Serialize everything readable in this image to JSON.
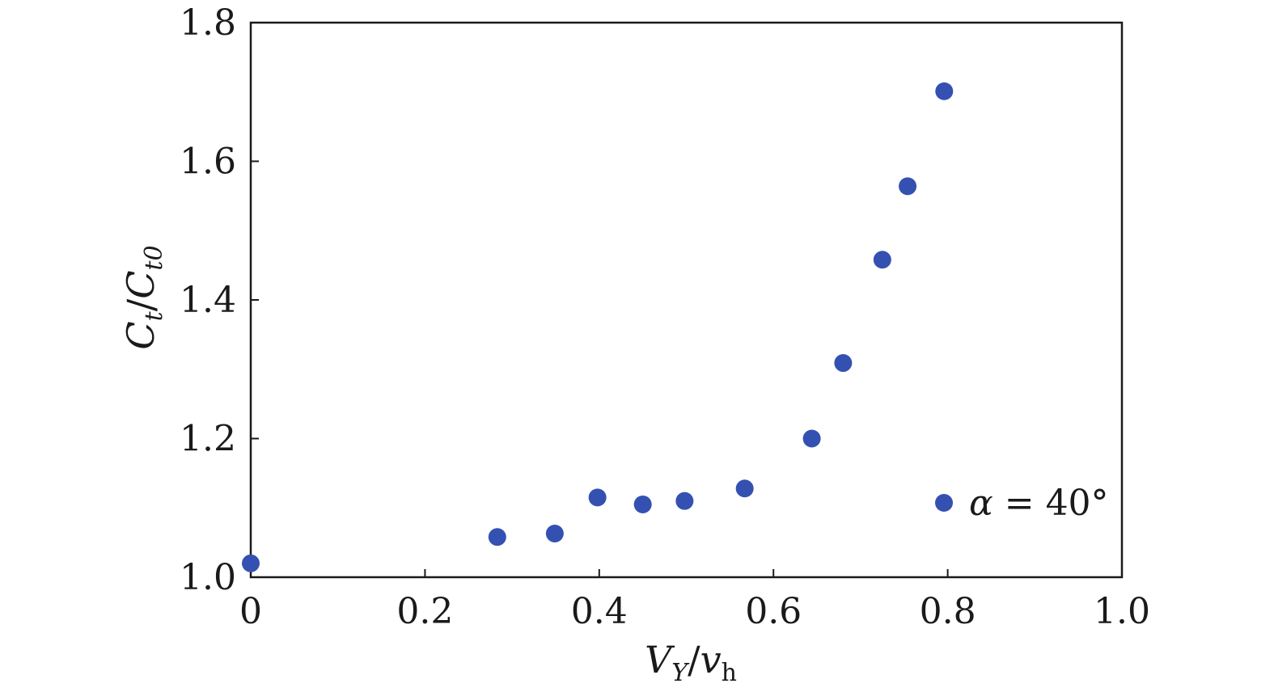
{
  "chart_data": {
    "type": "scatter",
    "x_ticks": [
      "0",
      "0.2",
      "0.4",
      "0.6",
      "0.8",
      "1.0"
    ],
    "y_ticks": [
      "1.0",
      "1.2",
      "1.4",
      "1.6",
      "1.8"
    ],
    "xlim": [
      0,
      1.0
    ],
    "ylim": [
      1.0,
      1.8
    ],
    "grid": false,
    "legend_placement": "bottom-right",
    "xlabel": {
      "main": "V",
      "sub": "Y",
      "sep": "/",
      "main2": "v",
      "sub2": "h"
    },
    "ylabel": {
      "main": "C",
      "sub": "t",
      "sep": "/",
      "main2": "C",
      "sub2": "t0"
    },
    "series": [
      {
        "name": "α = 40°",
        "legend": {
          "symbol": "α",
          "equals": " = ",
          "value": "40°"
        },
        "color": "#3451B2",
        "x": [
          0.0,
          0.283,
          0.349,
          0.398,
          0.45,
          0.498,
          0.567,
          0.644,
          0.68,
          0.725,
          0.754,
          0.796
        ],
        "y": [
          1.02,
          1.058,
          1.063,
          1.115,
          1.105,
          1.11,
          1.128,
          1.2,
          1.309,
          1.458,
          1.564,
          1.701
        ]
      }
    ]
  }
}
